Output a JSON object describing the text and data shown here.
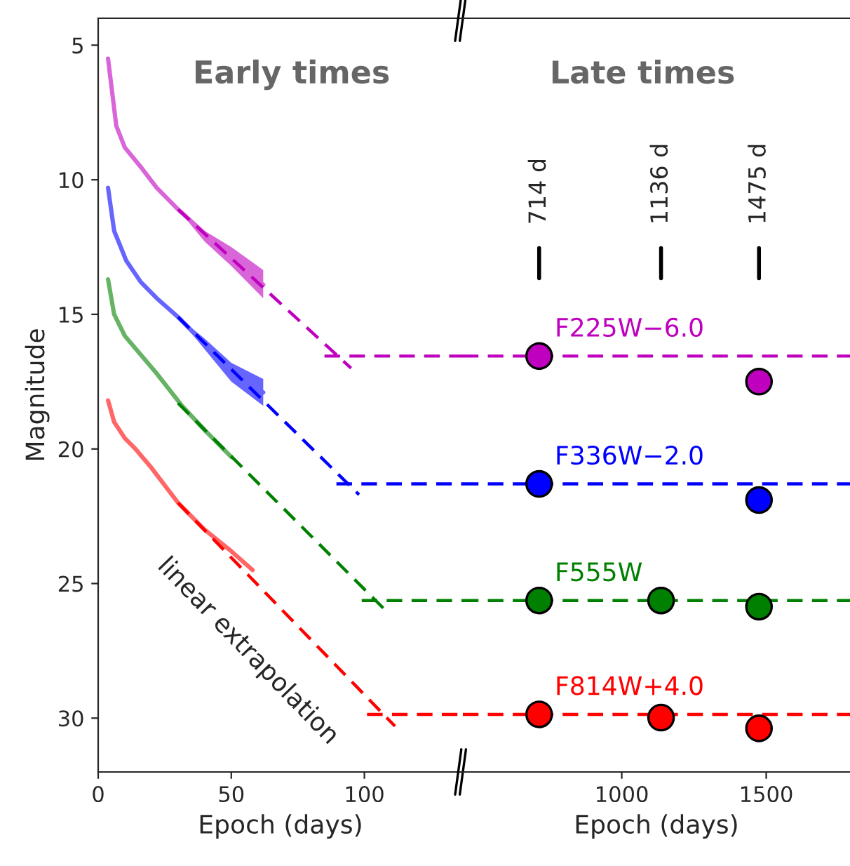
{
  "chart_data": [
    {
      "type": "line",
      "xlabel": "Epoch (days)",
      "ylabel": "Magnitude",
      "xlim": [
        0,
        137
      ],
      "xticks": [
        0,
        50,
        100
      ],
      "ylim": [
        32,
        4
      ],
      "yticks": [
        5,
        10,
        15,
        20,
        25,
        30
      ],
      "legend": false,
      "annotations": [
        "Early times",
        "linear extrapolation"
      ],
      "series": [
        {
          "type": "line",
          "color": "#d966d9",
          "line_style": "solid",
          "x": [
            3.7,
            6.8,
            10,
            15.8,
            22,
            30,
            40,
            50,
            62
          ],
          "values": [
            5.5,
            8.0,
            8.8,
            9.5,
            10.3,
            11.1,
            12.0,
            12.9,
            13.9
          ],
          "lower": [
            null,
            null,
            null,
            null,
            null,
            11.1,
            11.9,
            12.5,
            13.35
          ],
          "upper": [
            null,
            null,
            null,
            null,
            null,
            11.1,
            12.3,
            13.2,
            14.4
          ]
        },
        {
          "type": "line",
          "color": "#6666ff",
          "line_style": "solid",
          "x": [
            3.7,
            6,
            10.5,
            16,
            22,
            30,
            40,
            50,
            62
          ],
          "values": [
            10.3,
            11.9,
            13.0,
            13.8,
            14.4,
            15.1,
            16.1,
            17.1,
            17.9
          ],
          "lower": [
            null,
            null,
            null,
            null,
            null,
            15.1,
            15.9,
            16.8,
            17.4
          ],
          "upper": [
            null,
            null,
            null,
            null,
            null,
            15.1,
            16.3,
            17.5,
            18.4
          ]
        },
        {
          "type": "line",
          "color": "#66b366",
          "line_style": "solid",
          "x": [
            3.7,
            6,
            10,
            16,
            22,
            31.5,
            40,
            50
          ],
          "values": [
            13.7,
            15.0,
            15.8,
            16.5,
            17.2,
            18.4,
            19.3,
            20.3
          ]
        },
        {
          "type": "line",
          "color": "#ff6666",
          "line_style": "solid",
          "x": [
            3.7,
            6,
            10,
            14,
            20,
            30,
            40,
            50,
            58
          ],
          "values": [
            18.2,
            19.0,
            19.6,
            20.0,
            20.7,
            22.0,
            23.0,
            23.8,
            24.5
          ]
        },
        {
          "type": "line",
          "color": "#bf00bf",
          "line_style": "dashed",
          "x": [
            30,
            95
          ],
          "values": [
            11.1,
            17.0
          ]
        },
        {
          "type": "line",
          "color": "#0000ff",
          "line_style": "dashed",
          "x": [
            30,
            98
          ],
          "values": [
            15.1,
            21.7
          ]
        },
        {
          "type": "line",
          "color": "#008000",
          "line_style": "dashed",
          "x": [
            30,
            109
          ],
          "values": [
            18.3,
            26.1
          ]
        },
        {
          "type": "line",
          "color": "#ff0000",
          "line_style": "dashed",
          "x": [
            30,
            111.5
          ],
          "values": [
            22.0,
            30.3
          ]
        },
        {
          "type": "line",
          "color": "#bf00bf",
          "line_style": "dashed",
          "x": [
            85,
            137
          ],
          "values": [
            16.55,
            16.55
          ]
        },
        {
          "type": "line",
          "color": "#0000ff",
          "line_style": "dashed",
          "x": [
            89.5,
            137
          ],
          "values": [
            21.3,
            21.3
          ]
        },
        {
          "type": "line",
          "color": "#008000",
          "line_style": "dashed",
          "x": [
            99,
            137
          ],
          "values": [
            25.63,
            25.63
          ]
        },
        {
          "type": "line",
          "color": "#ff0000",
          "line_style": "dashed",
          "x": [
            101,
            137
          ],
          "values": [
            29.86,
            29.86
          ]
        }
      ]
    },
    {
      "type": "line",
      "xlabel": "Epoch (days)",
      "xlim": [
        450,
        1790
      ],
      "xticks": [
        1000,
        1500
      ],
      "ylim": [
        32,
        4
      ],
      "tick_labels": "x",
      "legend": false,
      "annotations": [
        "Late times",
        "714 d",
        "1136 d",
        "1475 d"
      ],
      "series": [
        {
          "type": "line",
          "color": "#bf00bf",
          "line_style": "dashed",
          "x": [
            450,
            1790
          ],
          "values": [
            16.55,
            16.55
          ]
        },
        {
          "type": "line",
          "color": "#0000ff",
          "line_style": "dashed",
          "x": [
            450,
            1790
          ],
          "values": [
            21.3,
            21.3
          ]
        },
        {
          "type": "line",
          "color": "#008000",
          "line_style": "dashed",
          "x": [
            450,
            1790
          ],
          "values": [
            25.63,
            25.63
          ]
        },
        {
          "type": "line",
          "color": "#ff0000",
          "line_style": "dashed",
          "x": [
            450,
            1790
          ],
          "values": [
            29.86,
            29.86
          ]
        },
        {
          "type": "scatter",
          "name": "F225W−6.0",
          "color": "#bf00bf",
          "marker": "circle",
          "x": [
            714,
            1475
          ],
          "values": [
            16.55,
            17.5
          ]
        },
        {
          "type": "scatter",
          "name": "F336W−2.0",
          "color": "#0000ff",
          "marker": "circle",
          "x": [
            714,
            1475
          ],
          "values": [
            21.3,
            21.9
          ]
        },
        {
          "type": "scatter",
          "name": "F555W",
          "color": "#008000",
          "marker": "circle",
          "x": [
            714,
            1136,
            1475
          ],
          "values": [
            25.63,
            25.63,
            25.86
          ]
        },
        {
          "type": "scatter",
          "name": "F814W+4.0",
          "color": "#ff0000",
          "marker": "circle",
          "x": [
            714,
            1136,
            1475
          ],
          "values": [
            29.86,
            29.98,
            30.38
          ]
        }
      ]
    }
  ]
}
